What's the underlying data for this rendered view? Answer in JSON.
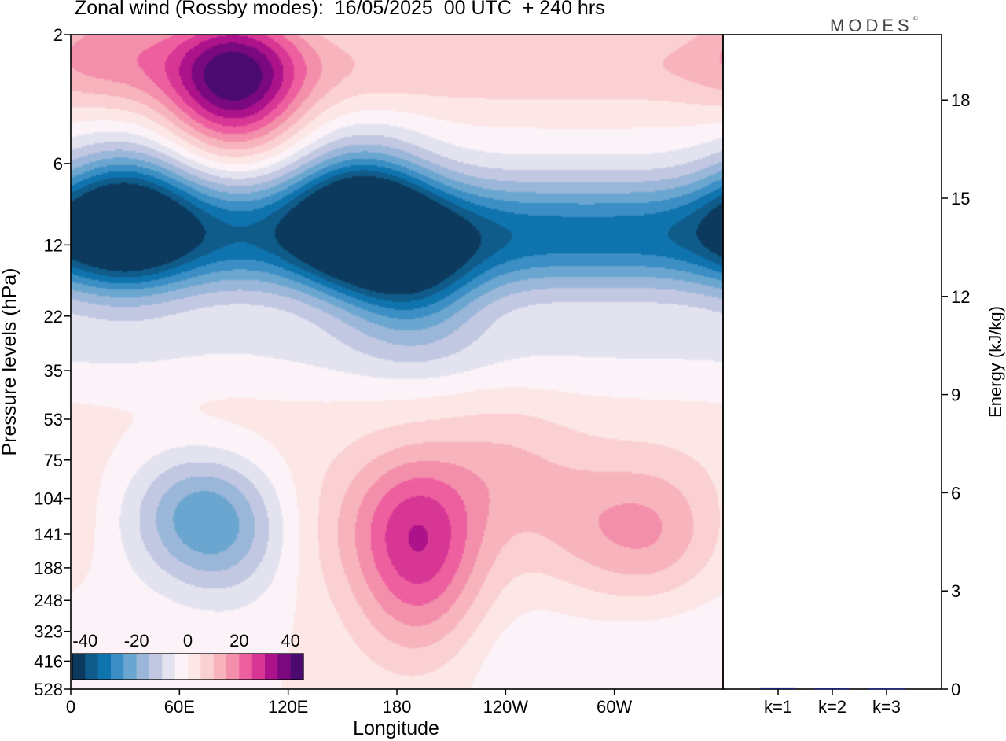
{
  "title": "Zonal wind (Rossby modes):  16/05/2025  00 UTC  + 240 hrs",
  "brand": "MODES",
  "brand_mark": "©",
  "chart_data": [
    {
      "type": "heatmap",
      "variable": "Zonal wind (Rossby modes)",
      "xlabel": "Longitude",
      "ylabel": "Pressure levels (hPa)",
      "x_ticks": [
        "0",
        "60E",
        "120E",
        "180",
        "120W",
        "60W"
      ],
      "y_ticks": [
        "2",
        "6",
        "12",
        "22",
        "35",
        "53",
        "75",
        "104",
        "141",
        "188",
        "248",
        "323",
        "416",
        "528"
      ],
      "y_scale": "log (pressure)",
      "colorbar": {
        "tick_labels": [
          "-40",
          "-20",
          "0",
          "20",
          "40"
        ],
        "range": [
          -45,
          45
        ],
        "step": 5,
        "colors": [
          "#0b3a5e",
          "#0f5b8a",
          "#0f73ad",
          "#3b8fc4",
          "#6aa6cf",
          "#9ab6d8",
          "#c2c8e2",
          "#e3e3f0",
          "#fbf3f7",
          "#fde6e6",
          "#fbd0d2",
          "#f8b4bc",
          "#f48fab",
          "#ee5fa0",
          "#d83694",
          "#ac138a",
          "#7a097f",
          "#4a0a6e"
        ]
      },
      "features": [
        {
          "lon": 90,
          "lev": 3,
          "u": 38
        },
        {
          "lon": 20,
          "lev": 2,
          "u": 10
        },
        {
          "lon": 160,
          "lev": 9.5,
          "u": -38
        },
        {
          "lon": 30,
          "lev": 9.5,
          "u": -32
        },
        {
          "lon": 190,
          "lev": 16,
          "u": -22
        },
        {
          "lon": 60,
          "lev": 115,
          "u": -10
        },
        {
          "lon": 80,
          "lev": 120,
          "u": -16
        },
        {
          "lon": 100,
          "lev": 160,
          "u": -6
        },
        {
          "lon": 190,
          "lev": 120,
          "u": 19
        },
        {
          "lon": 194,
          "lev": 190,
          "u": 13
        },
        {
          "lon": 190,
          "lev": 300,
          "u": 7
        },
        {
          "lon": 240,
          "lev": 80,
          "u": 7
        },
        {
          "lon": 280,
          "lev": 130,
          "u": 8
        },
        {
          "lon": 322,
          "lev": 140,
          "u": 13
        },
        {
          "lon": 130,
          "lev": 150,
          "u": 5
        },
        {
          "lon": 80,
          "lev": 65,
          "u": 3
        },
        {
          "lon": 250,
          "lev": 430,
          "u": -4
        },
        {
          "lon": 310,
          "lev": 480,
          "u": -4
        },
        {
          "lon": 355,
          "lev": 350,
          "u": -3
        }
      ]
    },
    {
      "type": "bar",
      "categories": [
        "k=1",
        "k=2",
        "k=3"
      ],
      "values": [
        0.05,
        0.03,
        0.02
      ],
      "ylabel": "Energy (kJ/kg)",
      "ylim": [
        0,
        20
      ],
      "y_ticks": [
        "0",
        "3",
        "6",
        "9",
        "12",
        "15",
        "18"
      ],
      "bar_color": "#1a237e"
    }
  ]
}
